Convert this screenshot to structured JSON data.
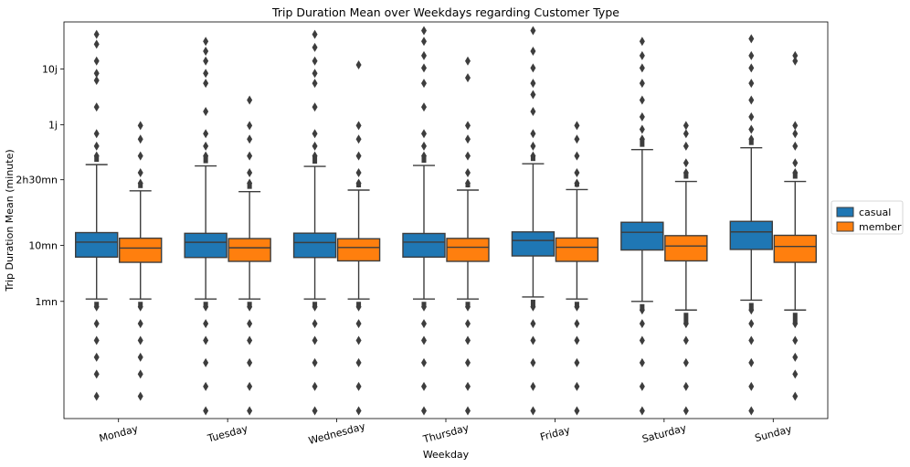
{
  "chart_data": {
    "type": "box",
    "title": "Trip Duration Mean over Weekdays regarding Customer Type",
    "xlabel": "Weekday",
    "ylabel": "Trip Duration Mean (minute)",
    "y_scale": "log",
    "categories": [
      "Monday",
      "Tuesday",
      "Wednesday",
      "Thursday",
      "Friday",
      "Saturday",
      "Sunday"
    ],
    "y_ticks": [
      {
        "value": 1,
        "label": "1mn"
      },
      {
        "value": 10,
        "label": "10mn"
      },
      {
        "value": 150,
        "label": "2h30mn"
      },
      {
        "value": 1440,
        "label": "1j"
      },
      {
        "value": 14400,
        "label": "10j"
      }
    ],
    "ylim": [
      0.008,
      100000
    ],
    "grid": false,
    "legend_position": "center-right",
    "series": [
      {
        "name": "casual",
        "color": "#1f77b4",
        "boxes": [
          {
            "whislo": 1.1,
            "q1": 6.2,
            "median": 11.5,
            "q3": 17.0,
            "whishi": 280,
            "outliers_low": [
              0.02,
              0.05,
              0.1,
              0.2,
              0.4,
              0.8
            ],
            "outliers_high": [
              400,
              600,
              1000,
              3000,
              9000,
              12000,
              20000,
              40000,
              60000
            ]
          },
          {
            "whislo": 1.1,
            "q1": 6.1,
            "median": 11.4,
            "q3": 16.5,
            "whishi": 265,
            "outliers_low": [
              0.011,
              0.03,
              0.08,
              0.2,
              0.4,
              0.8
            ],
            "outliers_high": [
              400,
              600,
              1000,
              2500,
              8000,
              12000,
              20000,
              30000,
              45000
            ]
          },
          {
            "whislo": 1.1,
            "q1": 6.1,
            "median": 11.3,
            "q3": 16.6,
            "whishi": 260,
            "outliers_low": [
              0.011,
              0.03,
              0.08,
              0.2,
              0.4,
              0.8
            ],
            "outliers_high": [
              400,
              600,
              1000,
              3000,
              8000,
              12000,
              20000,
              35000,
              60000
            ]
          },
          {
            "whislo": 1.1,
            "q1": 6.2,
            "median": 11.5,
            "q3": 16.4,
            "whishi": 270,
            "outliers_low": [
              0.011,
              0.03,
              0.08,
              0.2,
              0.4,
              0.8
            ],
            "outliers_high": [
              400,
              600,
              1000,
              3000,
              8000,
              15000,
              25000,
              45000,
              70000
            ]
          },
          {
            "whislo": 1.2,
            "q1": 6.5,
            "median": 12.3,
            "q3": 17.5,
            "whishi": 290,
            "outliers_low": [
              0.011,
              0.03,
              0.08,
              0.2,
              0.4,
              0.8
            ],
            "outliers_high": [
              400,
              600,
              1000,
              2500,
              5000,
              8000,
              15000,
              30000,
              70000
            ]
          },
          {
            "whislo": 1.0,
            "q1": 8.3,
            "median": 17.2,
            "q3": 26.0,
            "whishi": 520,
            "outliers_low": [
              0.011,
              0.03,
              0.08,
              0.2,
              0.4,
              0.7
            ],
            "outliers_high": [
              800,
              1200,
              2000,
              4000,
              8000,
              15000,
              25000,
              45000
            ]
          },
          {
            "whislo": 1.05,
            "q1": 8.5,
            "median": 17.5,
            "q3": 27.0,
            "whishi": 560,
            "outliers_low": [
              0.011,
              0.03,
              0.08,
              0.2,
              0.4,
              0.7
            ],
            "outliers_high": [
              800,
              1200,
              2000,
              4000,
              8000,
              15000,
              25000,
              50000
            ]
          }
        ]
      },
      {
        "name": "member",
        "color": "#ff7f0e",
        "boxes": [
          {
            "whislo": 1.1,
            "q1": 5.0,
            "median": 9.0,
            "q3": 13.5,
            "whishi": 95,
            "outliers_low": [
              0.02,
              0.05,
              0.1,
              0.2,
              0.4,
              0.8
            ],
            "outliers_high": [
              130,
              200,
              400,
              800,
              1400
            ]
          },
          {
            "whislo": 1.1,
            "q1": 5.2,
            "median": 9.1,
            "q3": 13.3,
            "whishi": 92,
            "outliers_low": [
              0.011,
              0.03,
              0.08,
              0.2,
              0.4,
              0.8
            ],
            "outliers_high": [
              130,
              200,
              400,
              800,
              1400,
              4000
            ]
          },
          {
            "whislo": 1.1,
            "q1": 5.3,
            "median": 9.2,
            "q3": 13.2,
            "whishi": 98,
            "outliers_low": [
              0.011,
              0.03,
              0.08,
              0.2,
              0.4,
              0.8
            ],
            "outliers_high": [
              130,
              200,
              400,
              800,
              1400,
              17000
            ]
          },
          {
            "whislo": 1.1,
            "q1": 5.2,
            "median": 9.3,
            "q3": 13.4,
            "whishi": 98,
            "outliers_low": [
              0.011,
              0.03,
              0.08,
              0.2,
              0.4,
              0.8
            ],
            "outliers_high": [
              130,
              200,
              400,
              800,
              1400,
              10000,
              20000
            ]
          },
          {
            "whislo": 1.1,
            "q1": 5.2,
            "median": 9.3,
            "q3": 13.6,
            "whishi": 100,
            "outliers_low": [
              0.011,
              0.03,
              0.08,
              0.2,
              0.4,
              0.8
            ],
            "outliers_high": [
              130,
              200,
              400,
              800,
              1400
            ]
          },
          {
            "whislo": 0.7,
            "q1": 5.3,
            "median": 9.8,
            "q3": 15.0,
            "whishi": 140,
            "outliers_low": [
              0.011,
              0.03,
              0.08,
              0.2,
              0.4
            ],
            "outliers_high": [
              200,
              300,
              600,
              1000,
              1400
            ]
          },
          {
            "whislo": 0.7,
            "q1": 5.0,
            "median": 9.6,
            "q3": 15.2,
            "whishi": 140,
            "outliers_low": [
              0.02,
              0.05,
              0.1,
              0.2,
              0.4
            ],
            "outliers_high": [
              200,
              300,
              600,
              1000,
              1400,
              20000,
              25000
            ]
          }
        ]
      }
    ]
  }
}
